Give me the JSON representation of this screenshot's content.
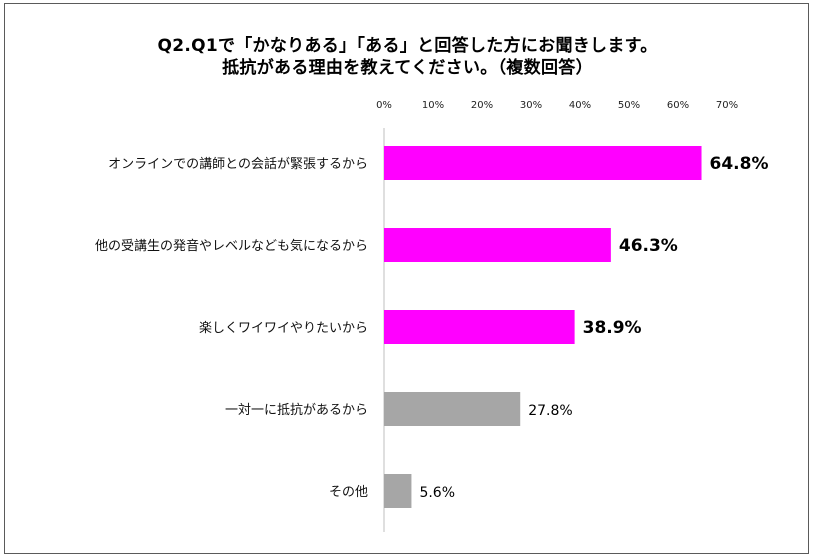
{
  "chart_data": {
    "type": "bar",
    "orientation": "horizontal",
    "title": "Q2.Q1で「かなりある」「ある」と回答した方にお聞きします。",
    "subtitle": "抵抗がある理由を教えてください。（複数回答）",
    "categories": [
      "オンラインでの講師との会話が緊張するから",
      "他の受講生の発音やレベルなども気になるから",
      "楽しくワイワイやりたいから",
      "一対一に抵抗があるから",
      "その他"
    ],
    "values": [
      64.8,
      46.3,
      38.9,
      27.8,
      5.6
    ],
    "value_labels": [
      "64.8%",
      "46.3%",
      "38.9%",
      "27.8%",
      "5.6%"
    ],
    "highlighted": [
      true,
      true,
      true,
      false,
      false
    ],
    "ticks": [
      "0%",
      "10%",
      "20%",
      "30%",
      "40%",
      "50%",
      "60%",
      "70%"
    ],
    "xlim": [
      0,
      70
    ],
    "xlabel": "",
    "ylabel": "",
    "grid": false,
    "axis_position": "top",
    "colors": {
      "highlight": "#ff00ff",
      "normal": "#a6a6a6",
      "axis": "#bfbfbf"
    }
  }
}
